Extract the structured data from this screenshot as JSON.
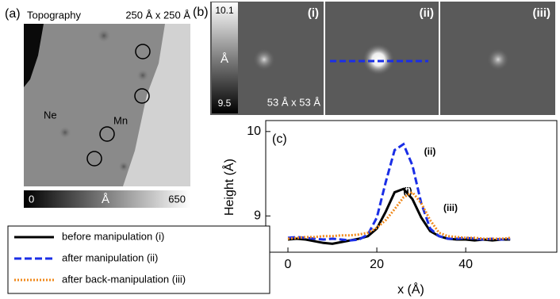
{
  "panel_a": {
    "label": "(a)",
    "title": "Topography",
    "scale": "250 Å x 250 Å",
    "markers": [
      "Ne",
      "Mn"
    ],
    "colorbar": {
      "min": 0,
      "unit": "Å",
      "max": 650
    }
  },
  "panel_b": {
    "label": "(b)",
    "images": [
      "(i)",
      "(ii)",
      "(iii)"
    ],
    "scale": "53 Å x 53 Å",
    "colorbar": {
      "max": 10.1,
      "unit": "Å",
      "min": 9.5
    }
  },
  "chart_data": {
    "type": "line",
    "panel_label": "(c)",
    "x_label": "x (Å)",
    "y_label": "Height (Å)",
    "annotations": [
      "(i)",
      "(ii)",
      "(iii)"
    ],
    "x": [
      0,
      2,
      4,
      6,
      8,
      10,
      12,
      14,
      16,
      18,
      20,
      22,
      24,
      26,
      28,
      30,
      32,
      34,
      36,
      38,
      40,
      42,
      44,
      46,
      48,
      50
    ],
    "series": [
      {
        "name": "before manipulation (i)",
        "color": "#000000",
        "dash": "solid",
        "values": [
          8.72,
          8.73,
          8.72,
          8.7,
          8.68,
          8.67,
          8.69,
          8.71,
          8.73,
          8.76,
          8.85,
          9.05,
          9.28,
          9.32,
          9.2,
          8.98,
          8.82,
          8.76,
          8.73,
          8.72,
          8.72,
          8.71,
          8.72,
          8.71,
          8.72,
          8.72
        ]
      },
      {
        "name": "after manipulation (ii)",
        "color": "#1a2ee6",
        "dash": "dashed",
        "values": [
          8.74,
          8.75,
          8.74,
          8.73,
          8.72,
          8.73,
          8.72,
          8.71,
          8.72,
          8.78,
          8.98,
          9.4,
          9.78,
          9.85,
          9.6,
          9.15,
          8.85,
          8.76,
          8.73,
          8.73,
          8.74,
          8.73,
          8.72,
          8.73,
          8.72,
          8.73
        ]
      },
      {
        "name": "after back-manipulation (iii)",
        "color": "#f08a1c",
        "dash": "dotted",
        "values": [
          8.73,
          8.74,
          8.75,
          8.75,
          8.76,
          8.76,
          8.77,
          8.77,
          8.78,
          8.8,
          8.86,
          8.95,
          9.08,
          9.22,
          9.28,
          9.15,
          8.95,
          8.8,
          8.76,
          8.75,
          8.74,
          8.74,
          8.73,
          8.73,
          8.73,
          8.74
        ]
      }
    ],
    "xlim": [
      -5,
      60.5
    ],
    "ylim": [
      8.57,
      10.13
    ],
    "xticks": [
      0,
      20,
      40
    ],
    "yticks": [
      9,
      10
    ],
    "grid": false
  }
}
